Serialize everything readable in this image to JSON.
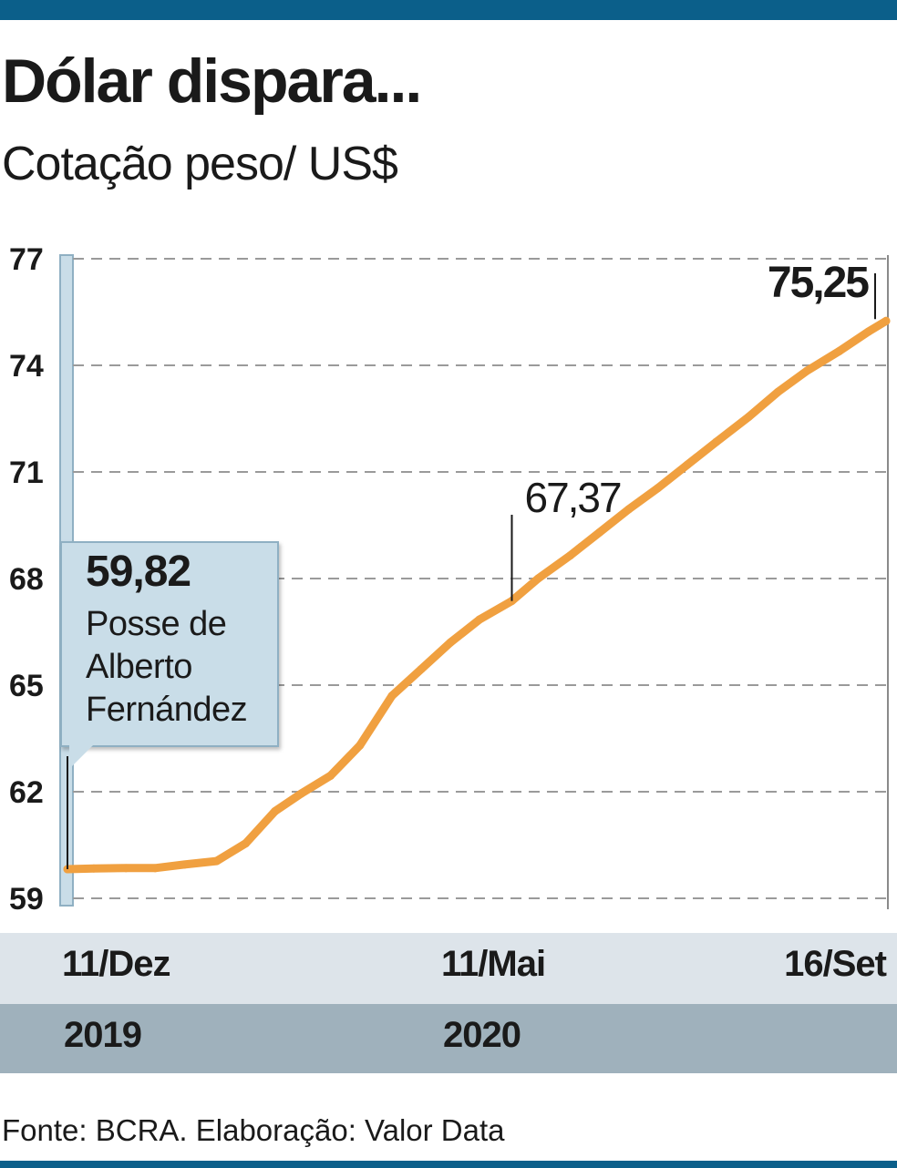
{
  "header": {
    "title": "Dólar dispara...",
    "subtitle": "Cotação peso/ US$"
  },
  "source": "Fonte: BCRA. Elaboração: Valor Data",
  "colors": {
    "brand_bar": "#0b5f8a",
    "line": "#f0a040",
    "grid": "#9a9a9a",
    "callout_bg": "#c9dde8",
    "band_dates": "#dde4ea",
    "band_years": "#9fb1bc"
  },
  "annotations": {
    "start": {
      "value": "59,82",
      "text": "Posse de Alberto Fernández"
    },
    "mid": {
      "value": "67,37"
    },
    "end": {
      "value": "75,25"
    }
  },
  "chart_data": {
    "type": "line",
    "title": "Dólar dispara...",
    "subtitle": "Cotação peso/ US$",
    "x_ticks": [
      {
        "date": "2019-12-11",
        "label": "11/Dez",
        "year": "2019"
      },
      {
        "date": "2020-05-11",
        "label": "11/Mai",
        "year": "2020"
      },
      {
        "date": "2020-09-16",
        "label": "16/Set",
        "year": ""
      }
    ],
    "yticks": [
      59,
      62,
      65,
      68,
      71,
      74,
      77
    ],
    "ylim": [
      59,
      77
    ],
    "grid": true,
    "series": [
      {
        "x": [
          "2019-12-11",
          "2019-12-20",
          "2019-12-31",
          "2020-01-10",
          "2020-01-20",
          "2020-01-31",
          "2020-02-10",
          "2020-02-20",
          "2020-02-29",
          "2020-03-10",
          "2020-03-20",
          "2020-03-31",
          "2020-04-10",
          "2020-04-20",
          "2020-04-30",
          "2020-05-11",
          "2020-05-20",
          "2020-05-31",
          "2020-06-10",
          "2020-06-20",
          "2020-06-30",
          "2020-07-10",
          "2020-07-20",
          "2020-07-31",
          "2020-08-10",
          "2020-08-20",
          "2020-08-31",
          "2020-09-10",
          "2020-09-16"
        ],
        "y": [
          59.82,
          59.84,
          59.85,
          59.85,
          59.95,
          60.05,
          60.55,
          61.45,
          61.95,
          62.45,
          63.3,
          64.7,
          65.45,
          66.2,
          66.85,
          67.37,
          68.0,
          68.65,
          69.3,
          69.95,
          70.55,
          71.2,
          71.85,
          72.55,
          73.25,
          73.85,
          74.4,
          74.95,
          75.25
        ]
      }
    ]
  }
}
